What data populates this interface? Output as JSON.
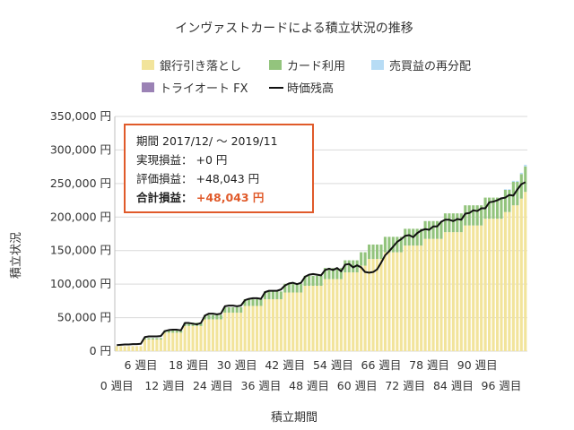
{
  "chart_data": {
    "type": "bar",
    "title": "インヴァストカードによる積立状況の推移",
    "xlabel": "積立期間",
    "ylabel": "積立状況",
    "ylim": [
      0,
      350000
    ],
    "y_ticks": [
      "0 円",
      "50,000 円",
      "100,000 円",
      "150,000 円",
      "200,000 円",
      "250,000 円",
      "300,000 円",
      "350,000 円"
    ],
    "x_ticks_upper": [
      "6 週目",
      "18 週目",
      "30 週目",
      "42 週目",
      "54 週目",
      "66 週目",
      "78 週目",
      "90 週目"
    ],
    "x_ticks_lower": [
      "0 週目",
      "12 週目",
      "24 週目",
      "36 週目",
      "48 週目",
      "60 週目",
      "72 週目",
      "84 週目",
      "96 週目"
    ],
    "legend": [
      {
        "name": "銀行引き落とし",
        "color": "#f2e49b",
        "kind": "bar"
      },
      {
        "name": "カード利用",
        "color": "#93c47d",
        "kind": "bar"
      },
      {
        "name": "売買益の再分配",
        "color": "#b7dcf5",
        "kind": "bar"
      },
      {
        "name": "トライオート FX",
        "color": "#9b82b5",
        "kind": "bar"
      },
      {
        "name": "時価残高",
        "color": "#111111",
        "kind": "line"
      }
    ],
    "weeks": 103,
    "series": [
      {
        "name": "銀行引き落とし",
        "values": [
          7500,
          7500,
          7500,
          7500,
          7500,
          7500,
          7500,
          17500,
          17500,
          17500,
          17500,
          17500,
          27500,
          27500,
          27500,
          27500,
          27500,
          37500,
          37500,
          37500,
          37500,
          37500,
          47500,
          47500,
          47500,
          47500,
          47500,
          57500,
          57500,
          57500,
          57500,
          57500,
          67500,
          67500,
          67500,
          67500,
          67500,
          77500,
          77500,
          77500,
          77500,
          77500,
          87500,
          87500,
          87500,
          87500,
          87500,
          97500,
          97500,
          97500,
          97500,
          97500,
          107500,
          107500,
          107500,
          107500,
          107500,
          117500,
          117500,
          117500,
          117500,
          127500,
          127500,
          137500,
          137500,
          137500,
          137500,
          147500,
          147500,
          147500,
          147500,
          147500,
          157500,
          157500,
          157500,
          157500,
          157500,
          167500,
          167500,
          167500,
          167500,
          167500,
          177500,
          177500,
          177500,
          177500,
          177500,
          187500,
          187500,
          187500,
          187500,
          187500,
          197500,
          197500,
          197500,
          197500,
          197500,
          207500,
          207500,
          217500,
          217500,
          227500,
          237500
        ]
      },
      {
        "name": "カード利用",
        "values": [
          0,
          0,
          0,
          0,
          0,
          0,
          0,
          2000,
          2000,
          2000,
          2000,
          2000,
          3500,
          3500,
          3500,
          3500,
          3500,
          5000,
          5000,
          5000,
          5000,
          5000,
          6500,
          6500,
          6500,
          6500,
          6500,
          8000,
          8000,
          8000,
          8000,
          8000,
          10000,
          10000,
          10000,
          10000,
          10000,
          11500,
          11500,
          11500,
          11500,
          11500,
          13000,
          13000,
          13000,
          13000,
          13000,
          15000,
          15000,
          15000,
          15000,
          15000,
          16500,
          16500,
          16500,
          16500,
          16500,
          18000,
          18000,
          18000,
          18000,
          20000,
          20000,
          21500,
          21500,
          21500,
          21500,
          23000,
          23000,
          23000,
          23000,
          23000,
          25000,
          25000,
          25000,
          25000,
          25000,
          26500,
          26500,
          26500,
          26500,
          26500,
          28000,
          28000,
          28000,
          28000,
          28000,
          30000,
          30000,
          30000,
          30000,
          30000,
          31500,
          31500,
          31500,
          31500,
          31500,
          33000,
          33000,
          35000,
          35000,
          36500,
          38000
        ]
      },
      {
        "name": "売買益の再分配",
        "values": [
          0,
          0,
          0,
          0,
          0,
          0,
          0,
          0,
          0,
          0,
          0,
          0,
          0,
          0,
          0,
          0,
          0,
          0,
          0,
          0,
          0,
          0,
          0,
          0,
          0,
          0,
          0,
          0,
          0,
          0,
          0,
          0,
          0,
          0,
          0,
          0,
          0,
          0,
          0,
          0,
          0,
          0,
          0,
          0,
          0,
          0,
          0,
          0,
          0,
          0,
          0,
          0,
          0,
          0,
          0,
          0,
          0,
          0,
          0,
          0,
          0,
          0,
          0,
          0,
          0,
          0,
          0,
          0,
          0,
          0,
          0,
          0,
          0,
          0,
          0,
          0,
          0,
          0,
          0,
          0,
          0,
          0,
          0,
          0,
          0,
          0,
          0,
          0,
          0,
          0,
          0,
          0,
          0,
          0,
          0,
          0,
          0,
          1000,
          1000,
          1500,
          1500,
          2000,
          2500
        ]
      },
      {
        "name": "トライオート FX",
        "values": [
          0,
          0,
          0,
          0,
          0,
          0,
          0,
          0,
          0,
          0,
          0,
          0,
          0,
          0,
          0,
          0,
          0,
          0,
          0,
          0,
          0,
          0,
          0,
          0,
          0,
          0,
          0,
          0,
          0,
          0,
          0,
          0,
          0,
          0,
          0,
          0,
          0,
          0,
          0,
          0,
          0,
          0,
          0,
          0,
          0,
          0,
          0,
          0,
          0,
          0,
          0,
          0,
          0,
          0,
          0,
          0,
          0,
          0,
          0,
          0,
          0,
          0,
          0,
          0,
          0,
          0,
          0,
          0,
          0,
          0,
          0,
          0,
          0,
          0,
          0,
          0,
          0,
          0,
          0,
          0,
          0,
          0,
          0,
          0,
          0,
          0,
          0,
          0,
          0,
          0,
          0,
          0,
          0,
          0,
          0,
          0,
          0,
          0,
          0,
          0,
          0,
          0,
          0
        ]
      },
      {
        "name": "時価残高",
        "values": [
          9000,
          9500,
          10000,
          10000,
          10500,
          10500,
          11000,
          21000,
          22000,
          22000,
          22000,
          22500,
          30000,
          31500,
          32000,
          32000,
          31000,
          42000,
          42000,
          41000,
          40000,
          42000,
          53000,
          56000,
          56000,
          55000,
          56000,
          67000,
          68000,
          68000,
          67000,
          68000,
          76000,
          78000,
          79000,
          79000,
          78000,
          88000,
          90000,
          90000,
          90000,
          92000,
          98000,
          101000,
          102000,
          100000,
          102000,
          111000,
          114000,
          115000,
          114000,
          113000,
          121000,
          123000,
          121000,
          124000,
          119000,
          129000,
          130000,
          125000,
          128000,
          125000,
          118000,
          117000,
          118000,
          122000,
          132000,
          143000,
          149000,
          156000,
          163000,
          167000,
          172000,
          173000,
          170000,
          176000,
          180000,
          182000,
          181000,
          186000,
          186000,
          193000,
          196000,
          196000,
          194000,
          197000,
          196000,
          205000,
          206000,
          210000,
          209000,
          213000,
          213000,
          222000,
          223000,
          225000,
          228000,
          229000,
          233000,
          232000,
          241000,
          249000,
          252000
        ]
      }
    ]
  },
  "infobox": {
    "period_label": "期間",
    "period_value": "2017/12/ ～ 2019/11",
    "realized_label": "実現損益：",
    "realized_value": "+0 円",
    "valuation_label": "評価損益：",
    "valuation_value": "+48,043 円",
    "total_label": "合計損益：",
    "total_value": "+48,043 円"
  }
}
